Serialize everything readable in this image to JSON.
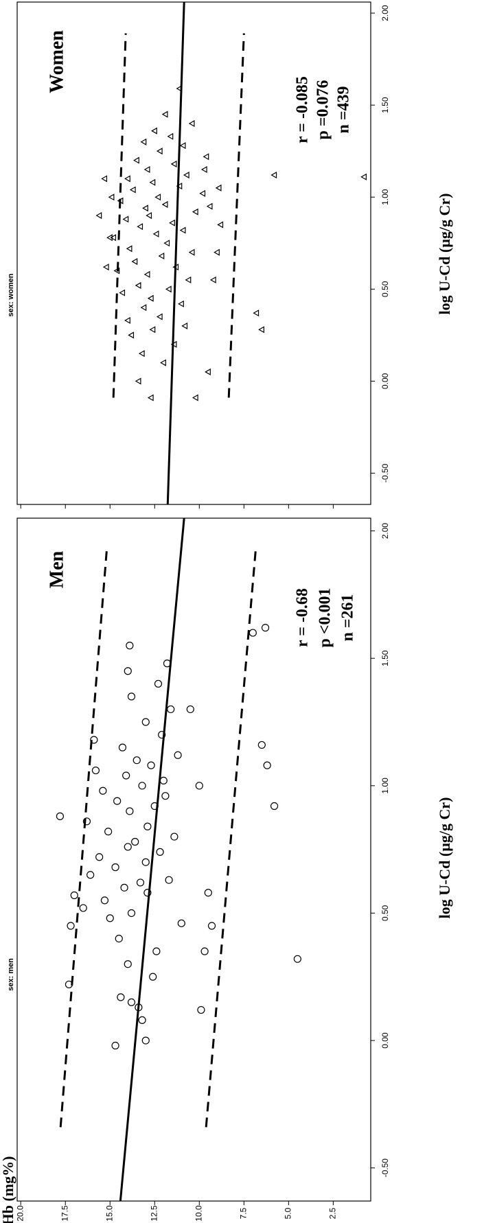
{
  "chart_data": [
    {
      "type": "scatter",
      "title": "Men",
      "strip": "sex: men",
      "xlabel": "log U-Cd (µg/g Cr)",
      "ylabel": "Hb (mg%)",
      "annotations": [
        "r = -0.68",
        "p <0.001",
        "n =261"
      ],
      "marker": "circle",
      "color": "#000000",
      "xlim": [
        -0.63,
        2.05
      ],
      "ylim": [
        0.4,
        20.2
      ],
      "xticks": [
        {
          "value": -0.5,
          "label": "-0.50"
        },
        {
          "value": 0,
          "label": "0.00"
        },
        {
          "value": 0.5,
          "label": "0.50"
        },
        {
          "value": 1,
          "label": "1.00"
        },
        {
          "value": 1.5,
          "label": "1.50"
        },
        {
          "value": 2,
          "label": "2.00"
        }
      ],
      "yticks": [
        {
          "value": 20,
          "label": "20.0"
        },
        17.5,
        {
          "value": 15,
          "label": "15.0"
        },
        12.5,
        {
          "value": 10,
          "label": "10.0"
        },
        7.5,
        {
          "value": 5,
          "label": "5.0"
        },
        2.5
      ],
      "fit_line": {
        "x": [
          -0.63,
          2.05
        ],
        "y": [
          14.42,
          10.85
        ]
      },
      "interval_lines": [
        {
          "x": [
            -0.34,
            1.92
          ],
          "y": [
            17.77,
            15.19
          ]
        },
        {
          "x": [
            -0.34,
            1.92
          ],
          "y": [
            9.62,
            6.85
          ]
        }
      ],
      "x": [
        -0.02,
        0.0,
        0.08,
        0.13,
        0.15,
        0.17,
        0.22,
        0.25,
        0.3,
        0.35,
        0.4,
        0.45,
        0.46,
        0.48,
        0.5,
        0.52,
        0.55,
        0.57,
        0.58,
        0.6,
        0.62,
        0.63,
        0.65,
        0.68,
        0.7,
        0.72,
        0.74,
        0.76,
        0.78,
        0.8,
        0.82,
        0.84,
        0.86,
        0.88,
        0.9,
        0.92,
        0.94,
        0.96,
        0.98,
        1.0,
        1.02,
        1.04,
        1.06,
        1.08,
        1.1,
        1.12,
        1.15,
        1.18,
        1.2,
        1.25,
        1.3,
        1.35,
        1.4,
        1.45,
        1.55,
        1.48,
        0.92,
        1.08,
        1.16,
        0.45,
        0.35,
        0.58,
        1.0,
        1.6,
        1.62,
        0.32,
        1.3,
        0.12
      ],
      "y": [
        14.7,
        13.0,
        13.2,
        13.4,
        13.8,
        14.4,
        17.3,
        12.6,
        14.0,
        12.4,
        14.5,
        17.2,
        11.0,
        15.0,
        13.8,
        16.5,
        15.3,
        17.0,
        12.9,
        14.2,
        13.3,
        11.7,
        16.1,
        14.7,
        13.0,
        15.6,
        12.2,
        14.0,
        13.6,
        11.4,
        15.1,
        12.9,
        16.3,
        17.8,
        13.9,
        12.5,
        14.6,
        11.9,
        15.4,
        13.2,
        12.0,
        14.1,
        15.8,
        12.7,
        13.5,
        11.2,
        14.3,
        15.9,
        12.1,
        13.0,
        11.6,
        13.8,
        12.3,
        14.0,
        13.9,
        11.8,
        5.8,
        6.2,
        6.5,
        9.3,
        9.7,
        9.5,
        10.0,
        7.0,
        6.3,
        4.5,
        10.5,
        9.9
      ]
    },
    {
      "type": "scatter",
      "title": "Women",
      "strip": "sex: women",
      "xlabel": "log U-Cd (µg/g Cr)",
      "annotations": [
        "r = -0.085",
        "p =0.076",
        "n =439"
      ],
      "marker": "triangle",
      "color": "#000000",
      "xlim": [
        -0.67,
        2.06
      ],
      "ylim": [
        0.4,
        20.2
      ],
      "xticks": [
        {
          "value": -0.5,
          "label": "-0.50"
        },
        {
          "value": 0,
          "label": "0.00"
        },
        {
          "value": 0.5,
          "label": "0.50"
        },
        {
          "value": 1,
          "label": "1.00"
        },
        {
          "value": 1.5,
          "label": "1.50"
        },
        {
          "value": 2,
          "label": "2.00"
        }
      ],
      "yticks": [
        20,
        17.5,
        15,
        12.5,
        10,
        7.5,
        5,
        2.5
      ],
      "fit_line": {
        "x": [
          -0.67,
          2.06
        ],
        "y": [
          11.77,
          10.85
        ]
      },
      "interval_lines": [
        {
          "x": [
            -0.09,
            1.89
          ],
          "y": [
            14.81,
            14.12
          ]
        },
        {
          "x": [
            -0.09,
            1.89
          ],
          "y": [
            8.35,
            7.5
          ]
        }
      ],
      "x": [
        0.1,
        0.15,
        0.2,
        0.25,
        0.28,
        0.3,
        0.33,
        0.35,
        0.4,
        0.42,
        0.45,
        0.48,
        0.5,
        0.52,
        0.55,
        0.58,
        0.6,
        0.62,
        0.65,
        0.68,
        0.7,
        0.72,
        0.75,
        0.78,
        0.8,
        0.82,
        0.84,
        0.86,
        0.88,
        0.9,
        0.92,
        0.94,
        0.96,
        0.98,
        1.0,
        1.02,
        1.04,
        1.06,
        1.08,
        1.1,
        1.12,
        1.15,
        1.18,
        1.2,
        1.22,
        1.25,
        1.28,
        1.3,
        1.33,
        1.36,
        1.4,
        1.45,
        0.55,
        0.7,
        0.85,
        0.95,
        1.05,
        1.15,
        0.62,
        0.78,
        0.9,
        1.0,
        1.1,
        1.11,
        1.12,
        0.28,
        0.37,
        -0.09,
        -0.09,
        1.59,
        0.0,
        0.05
      ],
      "y": [
        12.0,
        13.2,
        11.4,
        13.8,
        12.6,
        10.8,
        14.0,
        12.2,
        13.1,
        11.0,
        12.7,
        14.3,
        11.7,
        13.4,
        10.6,
        12.9,
        14.6,
        11.3,
        13.6,
        12.1,
        10.4,
        13.9,
        11.8,
        14.8,
        12.4,
        10.9,
        13.3,
        11.5,
        14.1,
        12.8,
        10.2,
        13.0,
        11.9,
        14.4,
        12.3,
        9.8,
        13.7,
        11.1,
        12.6,
        14.0,
        10.7,
        12.9,
        11.4,
        13.5,
        9.6,
        12.2,
        10.9,
        13.1,
        11.6,
        12.5,
        10.4,
        11.9,
        9.2,
        9.0,
        8.8,
        9.4,
        8.9,
        9.7,
        15.2,
        15.0,
        15.6,
        14.9,
        15.3,
        0.77,
        5.8,
        6.5,
        6.8,
        12.7,
        10.2,
        11.1,
        13.4,
        9.5
      ]
    }
  ]
}
